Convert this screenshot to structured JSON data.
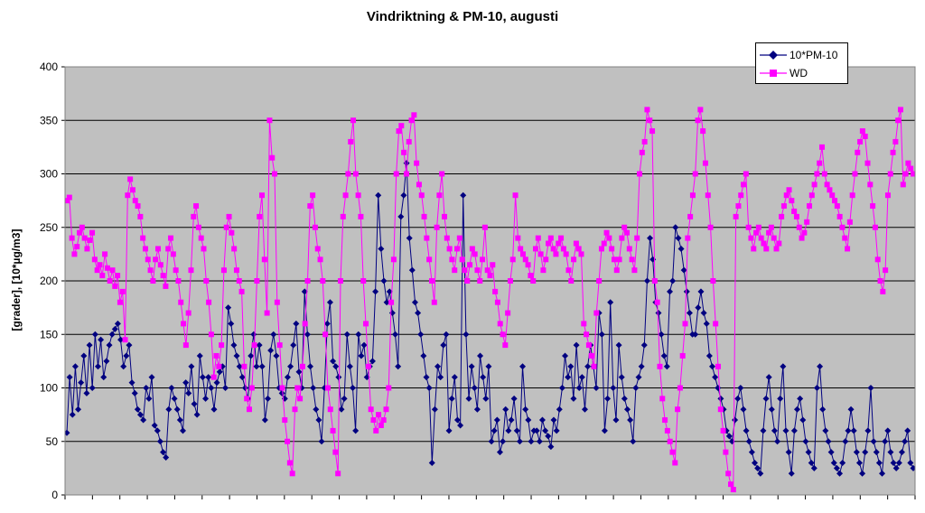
{
  "chart_data": {
    "type": "line",
    "title": "Vindriktning & PM-10, augusti",
    "xlabel": "",
    "ylabel": "[grader], [10*µg/m3]",
    "ylim": [
      0,
      400
    ],
    "yticks": [
      0,
      50,
      100,
      150,
      200,
      250,
      300,
      350,
      400
    ],
    "grid": true,
    "background": "#c0c0c0",
    "legend_position": "top-right",
    "series": [
      {
        "name": "10*PM-10",
        "color": "#000080",
        "marker": "diamond",
        "values": [
          58,
          110,
          75,
          120,
          80,
          105,
          130,
          95,
          140,
          100,
          150,
          120,
          145,
          110,
          125,
          140,
          150,
          155,
          160,
          145,
          120,
          130,
          140,
          105,
          95,
          80,
          75,
          70,
          100,
          90,
          110,
          65,
          60,
          50,
          40,
          35,
          80,
          100,
          90,
          80,
          70,
          60,
          105,
          95,
          120,
          85,
          75,
          130,
          110,
          90,
          110,
          100,
          80,
          105,
          115,
          120,
          100,
          175,
          160,
          140,
          130,
          120,
          110,
          100,
          90,
          130,
          150,
          120,
          140,
          120,
          70,
          90,
          135,
          150,
          130,
          100,
          95,
          90,
          110,
          120,
          140,
          160,
          115,
          100,
          190,
          150,
          120,
          100,
          80,
          70,
          50,
          100,
          160,
          180,
          125,
          120,
          110,
          80,
          90,
          150,
          120,
          100,
          60,
          150,
          130,
          140,
          110,
          120,
          125,
          190,
          280,
          230,
          200,
          180,
          190,
          170,
          150,
          120,
          260,
          280,
          310,
          240,
          210,
          180,
          170,
          150,
          130,
          110,
          100,
          30,
          80,
          120,
          110,
          140,
          150,
          60,
          90,
          110,
          70,
          65,
          280,
          150,
          90,
          120,
          100,
          80,
          130,
          110,
          90,
          120,
          50,
          60,
          70,
          40,
          50,
          80,
          60,
          70,
          90,
          60,
          50,
          120,
          80,
          70,
          50,
          60,
          60,
          50,
          70,
          60,
          55,
          45,
          70,
          60,
          80,
          100,
          130,
          110,
          120,
          90,
          140,
          100,
          110,
          80,
          120,
          140,
          120,
          100,
          170,
          150,
          60,
          90,
          180,
          100,
          70,
          140,
          110,
          90,
          80,
          70,
          50,
          100,
          110,
          120,
          140,
          200,
          240,
          220,
          180,
          170,
          150,
          130,
          120,
          190,
          200,
          250,
          240,
          230,
          210,
          190,
          170,
          150,
          150,
          175,
          190,
          170,
          160,
          130,
          120,
          110,
          100,
          90,
          80,
          60,
          55,
          50,
          70,
          90,
          100,
          80,
          60,
          50,
          40,
          30,
          25,
          20,
          60,
          90,
          110,
          80,
          60,
          50,
          90,
          120,
          60,
          40,
          20,
          60,
          80,
          90,
          70,
          50,
          40,
          30,
          25,
          100,
          120,
          80,
          60,
          50,
          40,
          30,
          25,
          20,
          30,
          50,
          60,
          80,
          60,
          40,
          30,
          20,
          40,
          60,
          100,
          50,
          40,
          30,
          20,
          50,
          60,
          40,
          30,
          25,
          30,
          40,
          50,
          60,
          30,
          25
        ]
      },
      {
        "name": "WD",
        "color": "#ff00ff",
        "marker": "square",
        "values": [
          275,
          278,
          240,
          225,
          232,
          245,
          250,
          240,
          230,
          238,
          245,
          220,
          210,
          215,
          205,
          225,
          212,
          200,
          210,
          195,
          205,
          180,
          190,
          145,
          280,
          295,
          285,
          275,
          270,
          260,
          240,
          230,
          220,
          210,
          200,
          220,
          230,
          215,
          205,
          195,
          230,
          240,
          225,
          210,
          200,
          180,
          160,
          140,
          170,
          210,
          260,
          270,
          250,
          240,
          230,
          200,
          180,
          150,
          110,
          130,
          120,
          140,
          210,
          250,
          260,
          245,
          230,
          210,
          200,
          190,
          120,
          90,
          80,
          100,
          140,
          200,
          260,
          280,
          220,
          170,
          350,
          315,
          300,
          180,
          140,
          100,
          70,
          50,
          30,
          20,
          80,
          100,
          90,
          120,
          160,
          200,
          270,
          280,
          250,
          230,
          220,
          200,
          150,
          100,
          80,
          60,
          40,
          20,
          200,
          260,
          280,
          300,
          330,
          350,
          300,
          280,
          260,
          200,
          160,
          120,
          80,
          70,
          60,
          75,
          65,
          70,
          80,
          100,
          180,
          220,
          300,
          340,
          345,
          320,
          300,
          330,
          350,
          355,
          310,
          290,
          280,
          260,
          240,
          220,
          200,
          180,
          250,
          280,
          300,
          260,
          240,
          230,
          220,
          210,
          230,
          240,
          220,
          210,
          200,
          215,
          230,
          225,
          210,
          200,
          220,
          250,
          210,
          205,
          215,
          190,
          180,
          160,
          150,
          140,
          170,
          200,
          220,
          280,
          240,
          230,
          225,
          220,
          215,
          205,
          200,
          230,
          240,
          225,
          210,
          220,
          235,
          240,
          230,
          225,
          235,
          240,
          230,
          225,
          210,
          200,
          220,
          235,
          230,
          225,
          160,
          150,
          140,
          130,
          120,
          170,
          200,
          230,
          235,
          245,
          240,
          230,
          220,
          210,
          220,
          240,
          250,
          245,
          230,
          220,
          210,
          240,
          300,
          320,
          330,
          360,
          350,
          340,
          200,
          180,
          120,
          90,
          70,
          60,
          50,
          40,
          30,
          80,
          100,
          130,
          160,
          240,
          260,
          280,
          300,
          350,
          360,
          340,
          310,
          280,
          250,
          200,
          160,
          120,
          80,
          60,
          40,
          20,
          10,
          5,
          260,
          270,
          280,
          290,
          300,
          250,
          240,
          230,
          245,
          250,
          240,
          235,
          230,
          245,
          250,
          240,
          230,
          235,
          260,
          270,
          280,
          285,
          275,
          265,
          260,
          250,
          240,
          245,
          255,
          270,
          280,
          290,
          300,
          310,
          325,
          300,
          290,
          285,
          280,
          275,
          270,
          260,
          250,
          240,
          230,
          255,
          280,
          300,
          320,
          330,
          340,
          335,
          310,
          290,
          270,
          250,
          220,
          200,
          190,
          210,
          280,
          300,
          320,
          330,
          350,
          360,
          290,
          300,
          310,
          305,
          300
        ]
      }
    ]
  }
}
